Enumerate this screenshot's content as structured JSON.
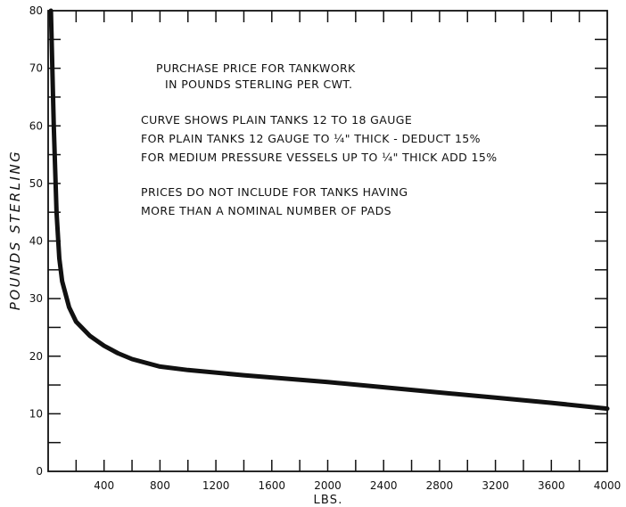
{
  "chart_data": {
    "type": "line",
    "title": "",
    "xlabel": "LBS.",
    "ylabel": "POUNDS STERLING",
    "xlim": [
      0,
      4000
    ],
    "ylim": [
      0,
      80
    ],
    "x_ticks": [
      400,
      800,
      1200,
      1600,
      2000,
      2400,
      2800,
      3200,
      3600,
      4000
    ],
    "y_ticks": [
      0,
      10,
      20,
      30,
      40,
      50,
      60,
      70,
      80
    ],
    "grid": false,
    "legend": "none",
    "annotations": [
      "PURCHASE PRICE FOR TANKWORK",
      "IN POUNDS STERLING PER CWT.",
      "CURVE SHOWS PLAIN TANKS 12 TO 18 GAUGE",
      "FOR PLAIN TANKS 12 GAUGE TO ¼\" THICK - DEDUCT 15%",
      "FOR MEDIUM PRESSURE VESSELS UP TO ¼\" THICK ADD 15%",
      "PRICES DO NOT INCLUDE FOR TANKS HAVING",
      "MORE THAN A NOMINAL NUMBER OF PADS"
    ],
    "series": [
      {
        "x": [
          20,
          40,
          60,
          80,
          100,
          150,
          200,
          300,
          400,
          500,
          600,
          800,
          1000,
          1400,
          2000,
          2400,
          2800,
          3200,
          3600,
          4000
        ],
        "values": [
          80,
          60,
          45,
          37,
          33,
          28.5,
          26,
          23.5,
          21.8,
          20.5,
          19.5,
          18.2,
          17.6,
          16.7,
          15.5,
          14.6,
          13.7,
          12.8,
          11.9,
          10.9
        ]
      }
    ]
  }
}
